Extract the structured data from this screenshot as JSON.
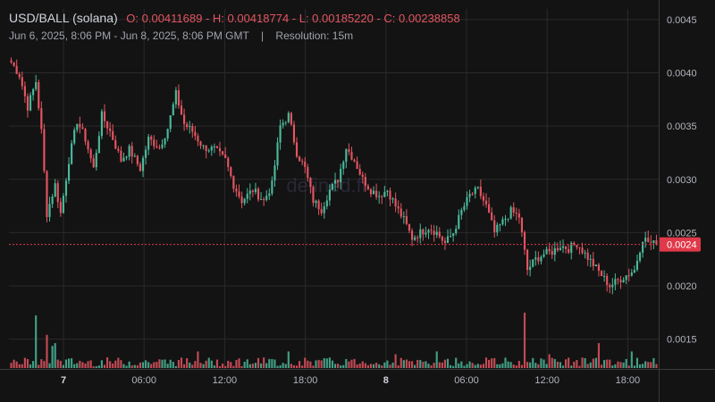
{
  "header": {
    "pair": "USD/BALL (solana)",
    "ohlc": "O: 0.00411689 - H: 0.00418774 - L: 0.00185220 - C: 0.00238858",
    "range": "Jun 6, 2025, 8:06 PM - Jun 8, 2025, 8:06 PM GMT",
    "separator": "|",
    "resolution": "Resolution: 15m"
  },
  "watermark": "defined.fi",
  "colors": {
    "up": "#4bb89a",
    "down": "#e35561",
    "bg": "#131313",
    "grid": "#2a2a2a",
    "price_badge": "#e0394a"
  },
  "chart_data": {
    "type": "candlestick",
    "resolution": "15m",
    "yticks": [
      "0.0045",
      "0.0040",
      "0.0035",
      "0.0030",
      "0.0025",
      "0.0020",
      "0.0015"
    ],
    "ylim": [
      0.00122,
      0.0046
    ],
    "xticks": [
      {
        "label": "7",
        "bold": true
      },
      {
        "label": "06:00",
        "bold": false
      },
      {
        "label": "12:00",
        "bold": false
      },
      {
        "label": "18:00",
        "bold": false
      },
      {
        "label": "8",
        "bold": true
      },
      {
        "label": "06:00",
        "bold": false
      },
      {
        "label": "12:00",
        "bold": false
      },
      {
        "label": "18:00",
        "bold": false
      }
    ],
    "current_price": 0.00238858,
    "current_price_label": "0.0024",
    "anchors": [
      [
        0,
        0.0041
      ],
      [
        3,
        0.00398
      ],
      [
        6,
        0.00368
      ],
      [
        9,
        0.00392
      ],
      [
        11,
        0.00345
      ],
      [
        13,
        0.00268
      ],
      [
        16,
        0.00295
      ],
      [
        18,
        0.00268
      ],
      [
        21,
        0.00318
      ],
      [
        24,
        0.00355
      ],
      [
        27,
        0.00338
      ],
      [
        30,
        0.0031
      ],
      [
        33,
        0.0036
      ],
      [
        36,
        0.00345
      ],
      [
        40,
        0.00318
      ],
      [
        43,
        0.00328
      ],
      [
        47,
        0.0031
      ],
      [
        50,
        0.00338
      ],
      [
        54,
        0.0033
      ],
      [
        57,
        0.00348
      ],
      [
        60,
        0.0038
      ],
      [
        63,
        0.00352
      ],
      [
        66,
        0.00345
      ],
      [
        70,
        0.0033
      ],
      [
        74,
        0.00328
      ],
      [
        78,
        0.00318
      ],
      [
        81,
        0.00295
      ],
      [
        84,
        0.0028
      ],
      [
        88,
        0.0029
      ],
      [
        92,
        0.0028
      ],
      [
        95,
        0.00295
      ],
      [
        98,
        0.0035
      ],
      [
        101,
        0.0036
      ],
      [
        104,
        0.00325
      ],
      [
        107,
        0.0031
      ],
      [
        110,
        0.0028
      ],
      [
        113,
        0.00272
      ],
      [
        116,
        0.0029
      ],
      [
        119,
        0.003
      ],
      [
        122,
        0.0033
      ],
      [
        125,
        0.00318
      ],
      [
        128,
        0.003
      ],
      [
        131,
        0.0029
      ],
      [
        134,
        0.00285
      ],
      [
        137,
        0.0029
      ],
      [
        140,
        0.00275
      ],
      [
        143,
        0.00262
      ],
      [
        146,
        0.00245
      ],
      [
        149,
        0.0025
      ],
      [
        152,
        0.00255
      ],
      [
        155,
        0.0025
      ],
      [
        158,
        0.0024
      ],
      [
        161,
        0.0025
      ],
      [
        164,
        0.0027
      ],
      [
        167,
        0.00285
      ],
      [
        170,
        0.0029
      ],
      [
        173,
        0.00275
      ],
      [
        176,
        0.0025
      ],
      [
        179,
        0.0026
      ],
      [
        182,
        0.0027
      ],
      [
        185,
        0.00265
      ],
      [
        188,
        0.00215
      ],
      [
        191,
        0.00225
      ],
      [
        194,
        0.0023
      ],
      [
        197,
        0.00232
      ],
      [
        200,
        0.00238
      ],
      [
        203,
        0.00235
      ],
      [
        206,
        0.0024
      ],
      [
        209,
        0.0023
      ],
      [
        212,
        0.0022
      ],
      [
        215,
        0.0021
      ],
      [
        218,
        0.002
      ],
      [
        221,
        0.00205
      ],
      [
        224,
        0.0021
      ],
      [
        227,
        0.00215
      ],
      [
        230,
        0.00245
      ],
      [
        233,
        0.0024
      ],
      [
        235,
        0.00239
      ]
    ],
    "volume_spikes": [
      [
        9,
        0.95
      ],
      [
        13,
        0.6
      ],
      [
        15,
        0.4
      ],
      [
        16,
        0.45
      ],
      [
        68,
        0.3
      ],
      [
        101,
        0.3
      ],
      [
        140,
        0.25
      ],
      [
        155,
        0.3
      ],
      [
        187,
        1.0
      ],
      [
        196,
        0.25
      ],
      [
        214,
        0.45
      ],
      [
        226,
        0.3
      ]
    ]
  }
}
